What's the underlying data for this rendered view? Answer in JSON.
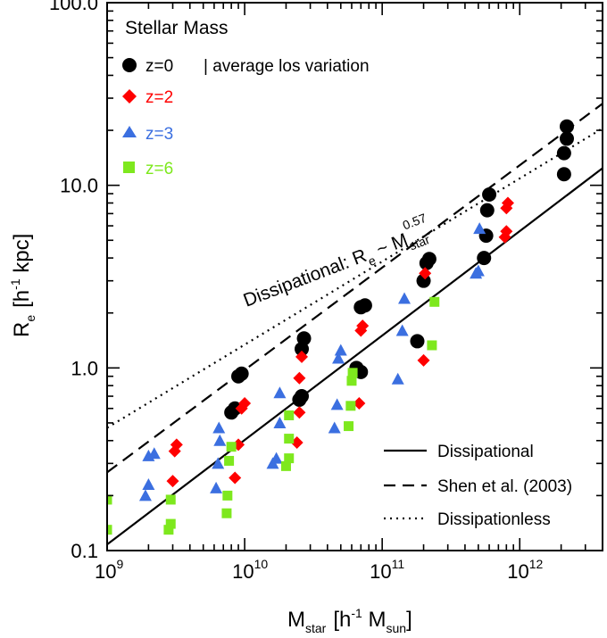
{
  "chart_data": {
    "type": "scatter",
    "title": "Stellar Mass",
    "xlabel": {
      "main": "M",
      "sub": "star",
      "unit_open": "[h",
      "unit_sup": "-1",
      "unit_main": " M",
      "unit_sub": "sun",
      "unit_close": "]"
    },
    "ylabel": {
      "main": "R",
      "sub": "e",
      "unit_open": "[h",
      "unit_sup": "-1",
      "unit_rest": " kpc]"
    },
    "xscale": "log",
    "yscale": "log",
    "xlim": [
      1000000000.0,
      4000000000000.0
    ],
    "ylim": [
      0.1,
      100
    ],
    "x_ticks": [
      {
        "value": 1000000000.0,
        "base": "10",
        "exp": "9"
      },
      {
        "value": 10000000000.0,
        "base": "10",
        "exp": "10"
      },
      {
        "value": 100000000000.0,
        "base": "10",
        "exp": "11"
      },
      {
        "value": 1000000000000.0,
        "base": "10",
        "exp": "12"
      }
    ],
    "y_ticks": [
      {
        "value": 0.1,
        "label": "0.1"
      },
      {
        "value": 1,
        "label": "1.0"
      },
      {
        "value": 10,
        "label": "10.0"
      },
      {
        "value": 100,
        "label": "100.0"
      }
    ],
    "scatter_series": [
      {
        "name": "z=0",
        "label": "z=0",
        "color": "#000000",
        "marker": "circle",
        "points": [
          [
            8000000000.0,
            0.57
          ],
          [
            8500000000.0,
            0.6
          ],
          [
            9000000000.0,
            0.9
          ],
          [
            9500000000.0,
            0.93
          ],
          [
            25000000000.0,
            0.67
          ],
          [
            26000000000.0,
            0.7
          ],
          [
            26000000000.0,
            1.27
          ],
          [
            27000000000.0,
            1.45
          ],
          [
            65000000000.0,
            1.0
          ],
          [
            70000000000.0,
            0.95
          ],
          [
            70000000000.0,
            2.15
          ],
          [
            75000000000.0,
            2.2
          ],
          [
            180000000000.0,
            1.4
          ],
          [
            200000000000.0,
            3.0
          ],
          [
            210000000000.0,
            3.75
          ],
          [
            220000000000.0,
            3.95
          ],
          [
            550000000000.0,
            4.0
          ],
          [
            570000000000.0,
            5.3
          ],
          [
            580000000000.0,
            7.3
          ],
          [
            600000000000.0,
            8.9
          ],
          [
            2100000000000.0,
            11.5
          ],
          [
            2100000000000.0,
            15.0
          ],
          [
            2200000000000.0,
            18.0
          ],
          [
            2200000000000.0,
            21.0
          ]
        ]
      },
      {
        "name": "z=2",
        "label": "z=2",
        "color": "#ff0000",
        "marker": "diamond",
        "points": [
          [
            3000000000.0,
            0.24
          ],
          [
            3100000000.0,
            0.35
          ],
          [
            3200000000.0,
            0.38
          ],
          [
            8500000000.0,
            0.25
          ],
          [
            9000000000.0,
            0.38
          ],
          [
            9500000000.0,
            0.6
          ],
          [
            10000000000.0,
            0.64
          ],
          [
            24000000000.0,
            0.39
          ],
          [
            25000000000.0,
            0.57
          ],
          [
            25000000000.0,
            0.88
          ],
          [
            26000000000.0,
            1.15
          ],
          [
            68000000000.0,
            0.64
          ],
          [
            70000000000.0,
            1.6
          ],
          [
            72000000000.0,
            1.7
          ],
          [
            200000000000.0,
            1.1
          ],
          [
            205000000000.0,
            3.3
          ],
          [
            780000000000.0,
            5.2
          ],
          [
            800000000000.0,
            5.6
          ],
          [
            800000000000.0,
            7.5
          ],
          [
            820000000000.0,
            8.0
          ]
        ]
      },
      {
        "name": "z=3",
        "label": "z=3",
        "color": "#3b6fe0",
        "marker": "triangle",
        "points": [
          [
            1900000000.0,
            0.2
          ],
          [
            2000000000.0,
            0.23
          ],
          [
            2000000000.0,
            0.33
          ],
          [
            2200000000.0,
            0.34
          ],
          [
            6200000000.0,
            0.22
          ],
          [
            6400000000.0,
            0.3
          ],
          [
            6600000000.0,
            0.4
          ],
          [
            6500000000.0,
            0.47
          ],
          [
            16000000000.0,
            0.3
          ],
          [
            17000000000.0,
            0.32
          ],
          [
            18000000000.0,
            0.5
          ],
          [
            18000000000.0,
            0.73
          ],
          [
            45000000000.0,
            0.47
          ],
          [
            47000000000.0,
            0.63
          ],
          [
            48000000000.0,
            1.13
          ],
          [
            50000000000.0,
            1.25
          ],
          [
            130000000000.0,
            0.87
          ],
          [
            140000000000.0,
            1.6
          ],
          [
            145000000000.0,
            2.4
          ],
          [
            480000000000.0,
            3.3
          ],
          [
            500000000000.0,
            3.4
          ],
          [
            510000000000.0,
            5.8
          ]
        ]
      },
      {
        "name": "z=6",
        "label": "z=6",
        "color": "#7ee81e",
        "marker": "square",
        "points": [
          [
            1000000000.0,
            0.13
          ],
          [
            1000000000.0,
            0.19
          ],
          [
            2800000000.0,
            0.13
          ],
          [
            2900000000.0,
            0.14
          ],
          [
            2900000000.0,
            0.19
          ],
          [
            7400000000.0,
            0.16
          ],
          [
            7500000000.0,
            0.2
          ],
          [
            7700000000.0,
            0.31
          ],
          [
            8000000000.0,
            0.37
          ],
          [
            20000000000.0,
            0.29
          ],
          [
            21000000000.0,
            0.32
          ],
          [
            21000000000.0,
            0.41
          ],
          [
            21000000000.0,
            0.55
          ],
          [
            57000000000.0,
            0.48
          ],
          [
            59000000000.0,
            0.62
          ],
          [
            60000000000.0,
            0.85
          ],
          [
            61000000000.0,
            0.94
          ],
          [
            230000000000.0,
            1.33
          ],
          [
            240000000000.0,
            2.3
          ]
        ]
      }
    ],
    "lines": [
      {
        "name": "Dissipational",
        "style": "solid",
        "points": [
          [
            1000000000.0,
            0.108
          ],
          [
            4000000000000.0,
            12.4
          ]
        ]
      },
      {
        "name": "Shen et al. (2003)",
        "style": "dashed",
        "points": [
          [
            1000000000.0,
            0.268
          ],
          [
            4000000000000.0,
            28.0
          ]
        ]
      },
      {
        "name": "Dissipationless",
        "style": "dotted",
        "points": [
          [
            1000000000.0,
            0.47
          ],
          [
            4000000000000.0,
            20.5
          ]
        ]
      }
    ],
    "annotation": {
      "main": "Dissipational: R",
      "sub1": "e",
      "mid": " ~ M",
      "sub2": "star",
      "sup": "0.57"
    },
    "los_note": "| average los variation",
    "legend_position": "top-left",
    "line_legend_position": "bottom-right"
  }
}
